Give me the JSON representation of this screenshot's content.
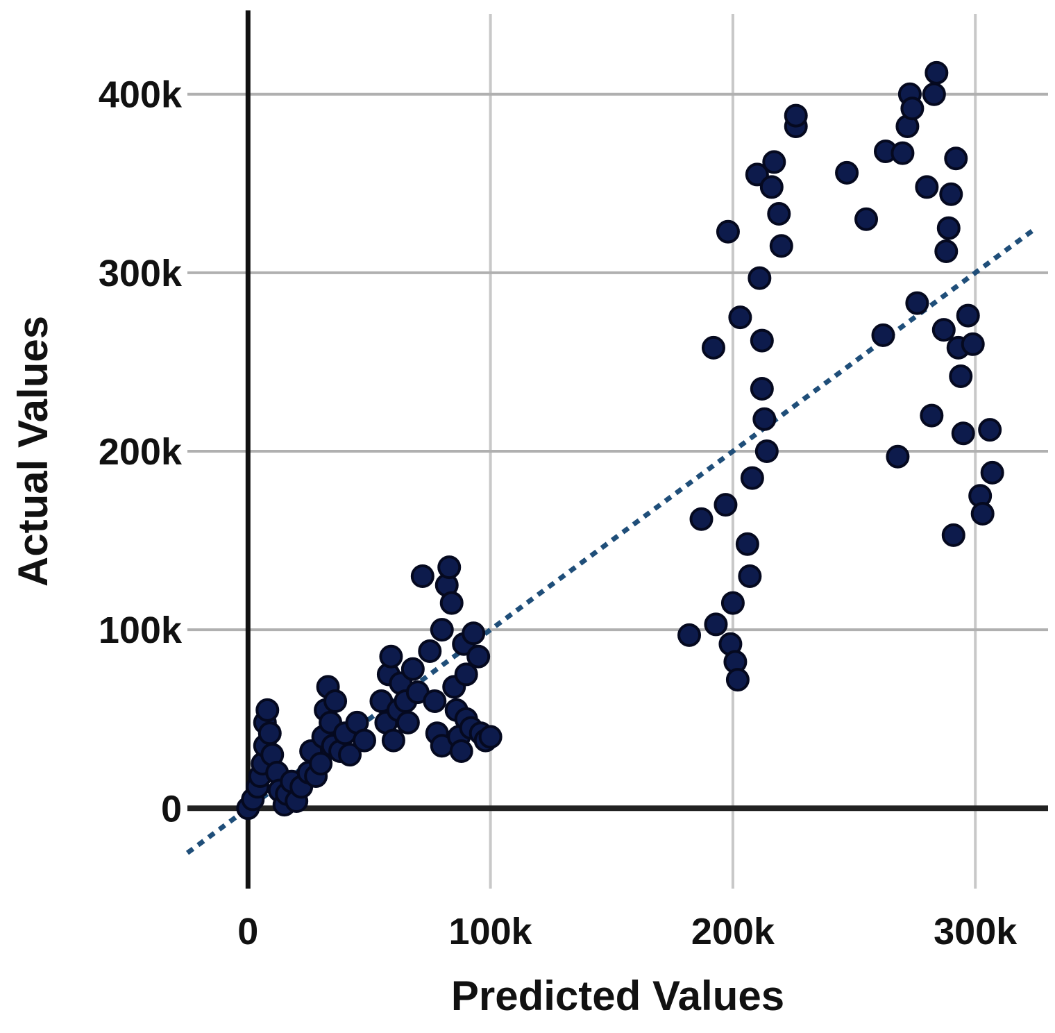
{
  "chart_data": {
    "type": "scatter",
    "xlabel": "Predicted Values",
    "ylabel": "Actual Values",
    "xlim": [
      -25000,
      330000
    ],
    "ylim": [
      -45000,
      445000
    ],
    "x_ticks": [
      {
        "value": 0,
        "label": "0"
      },
      {
        "value": 100000,
        "label": "100k"
      },
      {
        "value": 200000,
        "label": "200k"
      },
      {
        "value": 300000,
        "label": "300k"
      }
    ],
    "y_ticks": [
      {
        "value": 0,
        "label": "0"
      },
      {
        "value": 100000,
        "label": "100k"
      },
      {
        "value": 200000,
        "label": "200k"
      },
      {
        "value": 300000,
        "label": "300k"
      },
      {
        "value": 400000,
        "label": "400k"
      }
    ],
    "grid": true,
    "trendline": {
      "style": "dotted",
      "color": "#1f4e79",
      "from": [
        -25000,
        -25000
      ],
      "to": [
        325000,
        325000
      ]
    },
    "marker_color": "#0d1b4c",
    "series": [
      {
        "points": [
          [
            0,
            0
          ],
          [
            2000,
            5000
          ],
          [
            4000,
            12000
          ],
          [
            5000,
            18000
          ],
          [
            6000,
            25000
          ],
          [
            7000,
            35000
          ],
          [
            7000,
            48000
          ],
          [
            8000,
            55000
          ],
          [
            9000,
            42000
          ],
          [
            10000,
            30000
          ],
          [
            12000,
            20000
          ],
          [
            13000,
            10000
          ],
          [
            15000,
            2000
          ],
          [
            16000,
            8000
          ],
          [
            18000,
            15000
          ],
          [
            20000,
            4000
          ],
          [
            22000,
            12000
          ],
          [
            25000,
            20000
          ],
          [
            26000,
            32000
          ],
          [
            28000,
            18000
          ],
          [
            30000,
            25000
          ],
          [
            31000,
            40000
          ],
          [
            32000,
            55000
          ],
          [
            33000,
            68000
          ],
          [
            34000,
            48000
          ],
          [
            35000,
            35000
          ],
          [
            36000,
            60000
          ],
          [
            38000,
            32000
          ],
          [
            40000,
            42000
          ],
          [
            42000,
            30000
          ],
          [
            45000,
            48000
          ],
          [
            48000,
            38000
          ],
          [
            55000,
            60000
          ],
          [
            57000,
            48000
          ],
          [
            58000,
            75000
          ],
          [
            59000,
            85000
          ],
          [
            60000,
            38000
          ],
          [
            62000,
            55000
          ],
          [
            63000,
            70000
          ],
          [
            65000,
            60000
          ],
          [
            66000,
            48000
          ],
          [
            68000,
            78000
          ],
          [
            70000,
            65000
          ],
          [
            72000,
            130000
          ],
          [
            75000,
            88000
          ],
          [
            77000,
            60000
          ],
          [
            78000,
            42000
          ],
          [
            80000,
            100000
          ],
          [
            80000,
            35000
          ],
          [
            82000,
            125000
          ],
          [
            83000,
            135000
          ],
          [
            84000,
            115000
          ],
          [
            85000,
            68000
          ],
          [
            86000,
            55000
          ],
          [
            87000,
            40000
          ],
          [
            88000,
            32000
          ],
          [
            89000,
            92000
          ],
          [
            90000,
            75000
          ],
          [
            90000,
            50000
          ],
          [
            92000,
            45000
          ],
          [
            93000,
            98000
          ],
          [
            95000,
            85000
          ],
          [
            96000,
            42000
          ],
          [
            98000,
            38000
          ],
          [
            100000,
            40000
          ],
          [
            182000,
            97000
          ],
          [
            187000,
            162000
          ],
          [
            192000,
            258000
          ],
          [
            193000,
            103000
          ],
          [
            197000,
            170000
          ],
          [
            198000,
            323000
          ],
          [
            199000,
            92000
          ],
          [
            200000,
            115000
          ],
          [
            201000,
            82000
          ],
          [
            202000,
            72000
          ],
          [
            203000,
            275000
          ],
          [
            206000,
            148000
          ],
          [
            207000,
            130000
          ],
          [
            208000,
            185000
          ],
          [
            210000,
            355000
          ],
          [
            211000,
            297000
          ],
          [
            212000,
            262000
          ],
          [
            212000,
            235000
          ],
          [
            213000,
            218000
          ],
          [
            214000,
            200000
          ],
          [
            216000,
            348000
          ],
          [
            217000,
            362000
          ],
          [
            219000,
            333000
          ],
          [
            220000,
            315000
          ],
          [
            226000,
            382000
          ],
          [
            226000,
            388000
          ],
          [
            247000,
            356000
          ],
          [
            255000,
            330000
          ],
          [
            262000,
            265000
          ],
          [
            263000,
            368000
          ],
          [
            268000,
            197000
          ],
          [
            270000,
            367000
          ],
          [
            272000,
            382000
          ],
          [
            273000,
            400000
          ],
          [
            274000,
            392000
          ],
          [
            276000,
            283000
          ],
          [
            280000,
            348000
          ],
          [
            282000,
            220000
          ],
          [
            283000,
            400000
          ],
          [
            284000,
            412000
          ],
          [
            287000,
            268000
          ],
          [
            288000,
            312000
          ],
          [
            289000,
            325000
          ],
          [
            290000,
            344000
          ],
          [
            291000,
            153000
          ],
          [
            292000,
            364000
          ],
          [
            293000,
            258000
          ],
          [
            294000,
            242000
          ],
          [
            295000,
            210000
          ],
          [
            297000,
            276000
          ],
          [
            299000,
            260000
          ],
          [
            302000,
            175000
          ],
          [
            303000,
            165000
          ],
          [
            306000,
            212000
          ],
          [
            307000,
            188000
          ]
        ]
      }
    ]
  }
}
